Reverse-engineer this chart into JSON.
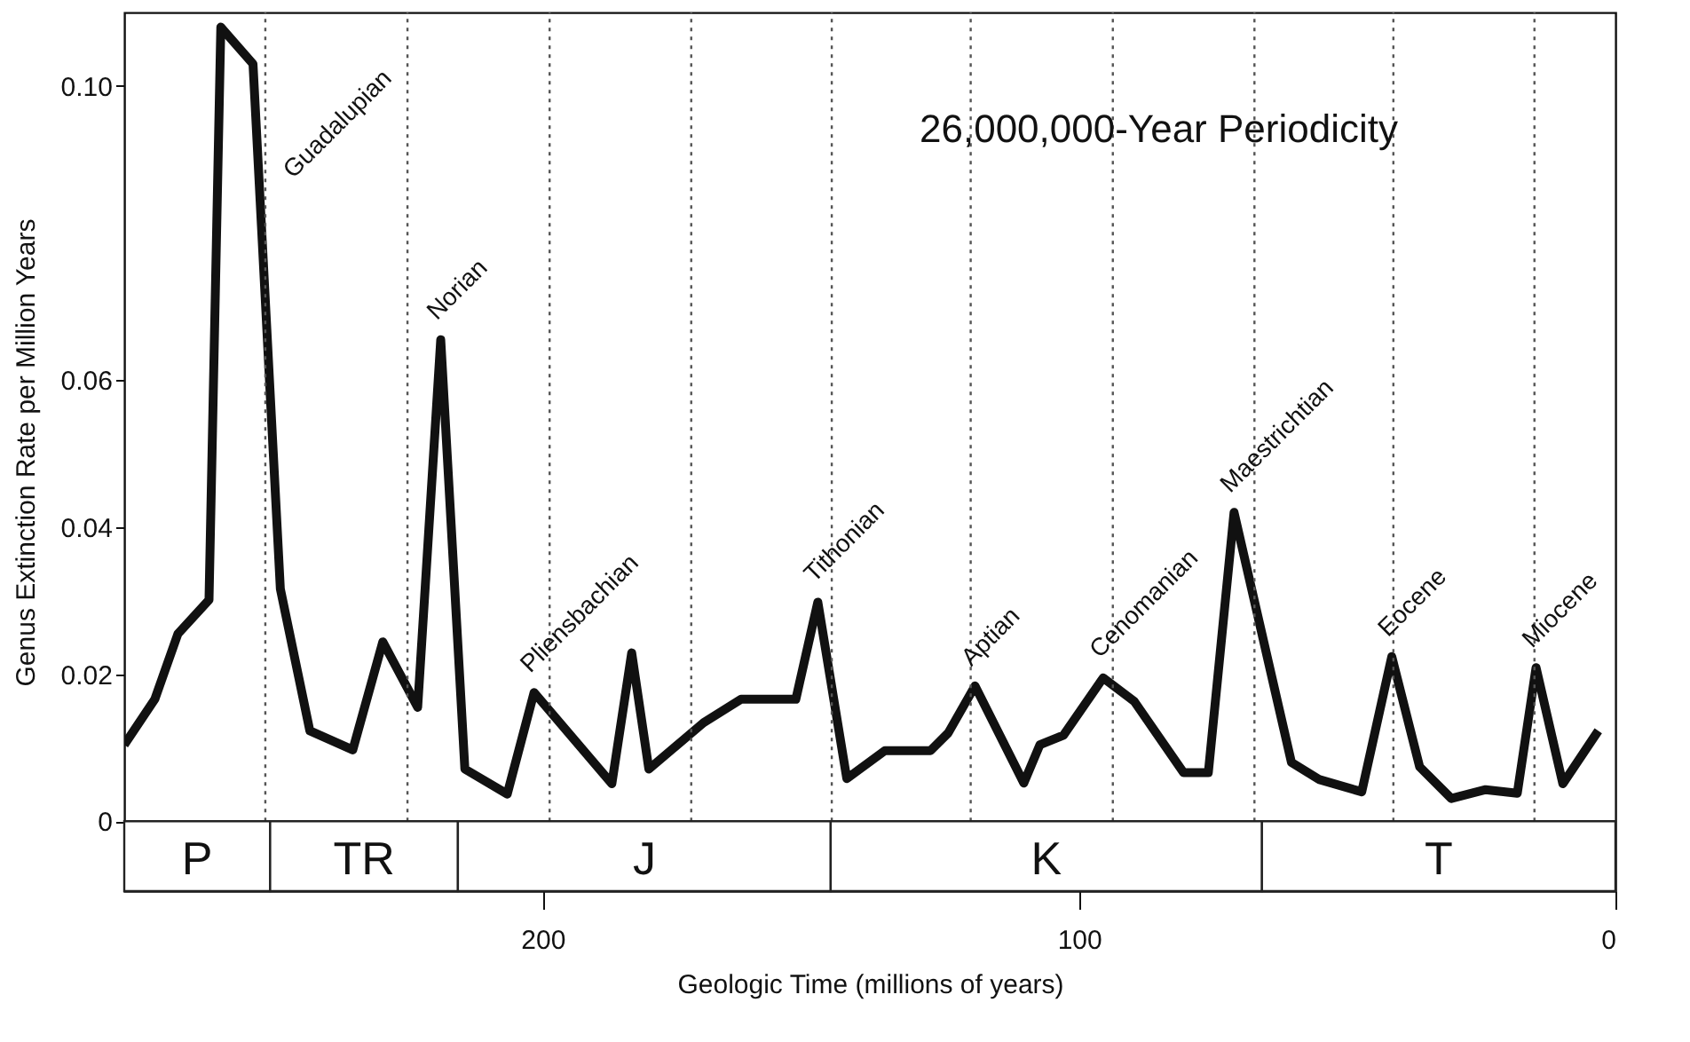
{
  "chart_data": {
    "type": "line",
    "xlabel": "Geologic Time (millions of years)",
    "ylabel": "Genus Extinction Rate per Million Years",
    "color": "#111111",
    "line_style": "solid",
    "x": [
      278,
      272.3,
      268,
      262.2,
      260,
      254,
      248.9,
      243.4,
      235.4,
      229.8,
      223.3,
      219,
      214.5,
      206.6,
      201.6,
      187.1,
      183.4,
      180.2,
      170,
      163,
      152.8,
      148.7,
      143.3,
      136.2,
      127.7,
      124.4,
      119.4,
      110.3,
      107.3,
      102.9,
      95.5,
      89.7,
      80.5,
      75.9,
      71.1,
      60.4,
      55.3,
      47.3,
      41.7,
      36.5,
      30.6,
      24.2,
      18.3,
      14.8,
      9.8,
      3.2
    ],
    "values": [
      0.0104,
      0.0166,
      0.0255,
      0.0301,
      0.108,
      0.103,
      0.0316,
      0.0123,
      0.0097,
      0.0244,
      0.0155,
      0.0655,
      0.0071,
      0.0037,
      0.0175,
      0.0051,
      0.0229,
      0.0071,
      0.0134,
      0.0166,
      0.0166,
      0.0298,
      0.0058,
      0.0096,
      0.0096,
      0.012,
      0.0184,
      0.0052,
      0.0104,
      0.0117,
      0.0195,
      0.0163,
      0.0066,
      0.0066,
      0.042,
      0.008,
      0.0057,
      0.004,
      0.0224,
      0.0074,
      0.0031,
      0.0043,
      0.0038,
      0.0209,
      0.0051,
      0.0123
    ],
    "xlim": [
      278,
      0
    ],
    "xticks": [
      200,
      100,
      0
    ],
    "ylim": [
      -0.0095,
      0.11
    ],
    "yticks": [
      0,
      0.02,
      0.04,
      0.06,
      {
        "value": 0.1,
        "label": "0.10"
      }
    ],
    "annotations": [
      {
        "text": "Guadalupian",
        "x": 254,
        "y": 0.103
      },
      {
        "text": "Norian",
        "x": 219,
        "y": 0.0655
      },
      {
        "text": "Pliensbachian",
        "x": 201.6,
        "y": 0.0175
      },
      {
        "text": "Tithonian",
        "x": 148.7,
        "y": 0.0298
      },
      {
        "text": "Aptian",
        "x": 119.4,
        "y": 0.0184
      },
      {
        "text": "Cenomanian",
        "x": 95.5,
        "y": 0.0195
      },
      {
        "text": "Maestrichtian",
        "x": 71.1,
        "y": 0.042
      },
      {
        "text": "Eocene",
        "x": 41.7,
        "y": 0.0224
      },
      {
        "text": "Miocene",
        "x": 14.8,
        "y": 0.0209
      },
      "26,000,000-Year Periodicity"
    ],
    "ref_lines": [
      {
        "axis": "x",
        "value": 251.7,
        "color": "#555555",
        "line_style": "dotted"
      },
      {
        "axis": "x",
        "value": 225.2,
        "color": "#555555",
        "line_style": "dotted"
      },
      {
        "axis": "x",
        "value": 198.7,
        "color": "#555555",
        "line_style": "dotted"
      },
      {
        "axis": "x",
        "value": 172.3,
        "color": "#555555",
        "line_style": "dotted"
      },
      {
        "axis": "x",
        "value": 146.1,
        "color": "#555555",
        "line_style": "dotted"
      },
      {
        "axis": "x",
        "value": 120.2,
        "color": "#555555",
        "line_style": "dotted"
      },
      {
        "axis": "x",
        "value": 93.7,
        "color": "#555555",
        "line_style": "dotted"
      },
      {
        "axis": "x",
        "value": 67.3,
        "color": "#555555",
        "line_style": "dotted"
      },
      {
        "axis": "x",
        "value": 41.4,
        "color": "#555555",
        "line_style": "dotted"
      },
      {
        "axis": "x",
        "value": 15.1,
        "color": "#555555",
        "line_style": "dotted"
      }
    ],
    "bands": [
      {
        "axis": "x",
        "from": 278,
        "to": 250.8,
        "label": "P"
      },
      {
        "axis": "x",
        "from": 250.8,
        "to": 215.8,
        "label": "TR"
      },
      {
        "axis": "x",
        "from": 215.8,
        "to": 146.3,
        "label": "J"
      },
      {
        "axis": "x",
        "from": 146.3,
        "to": 65.9,
        "label": "K"
      },
      {
        "axis": "x",
        "from": 65.9,
        "to": 0,
        "label": "T"
      }
    ]
  }
}
